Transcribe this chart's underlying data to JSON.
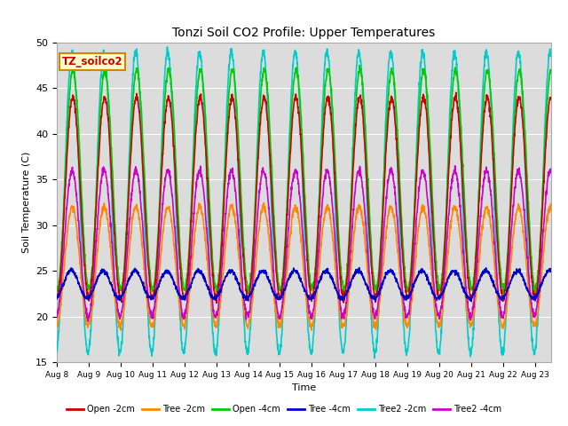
{
  "title": "Tonzi Soil CO2 Profile: Upper Temperatures",
  "xlabel": "Time",
  "ylabel": "Soil Temperature (C)",
  "ylim": [
    15,
    50
  ],
  "yticks": [
    15,
    20,
    25,
    30,
    35,
    40,
    45,
    50
  ],
  "xtick_labels": [
    "Aug 8",
    "Aug 9",
    "Aug 10",
    "Aug 11",
    "Aug 12",
    "Aug 13",
    "Aug 14",
    "Aug 15",
    "Aug 16",
    "Aug 17",
    "Aug 18",
    "Aug 19",
    "Aug 20",
    "Aug 21",
    "Aug 22",
    "Aug 23"
  ],
  "series": [
    {
      "name": "Open -2cm",
      "color": "#cc0000",
      "lw": 1.2,
      "zorder": 6
    },
    {
      "name": "Tree -2cm",
      "color": "#ff8800",
      "lw": 1.2,
      "zorder": 5
    },
    {
      "name": "Open -4cm",
      "color": "#00cc00",
      "lw": 1.2,
      "zorder": 4
    },
    {
      "name": "Tree -4cm",
      "color": "#0000cc",
      "lw": 1.2,
      "zorder": 7
    },
    {
      "name": "Tree2 -2cm",
      "color": "#00cccc",
      "lw": 1.2,
      "zorder": 3
    },
    {
      "name": "Tree2 -4cm",
      "color": "#cc00cc",
      "lw": 1.2,
      "zorder": 5
    }
  ],
  "annotation_box_color": "#ffffcc",
  "annotation_box_edge": "#cc8800",
  "annotation_text": "TZ_soilco2",
  "annotation_text_color": "#cc0000",
  "bg_color": "#dcdcdc",
  "n_points": 2000,
  "open2_amp": 11.0,
  "open2_base": 33.0,
  "open2_min": 22.0,
  "open2_max": 44.0,
  "tree2_amp": 6.5,
  "tree2_base": 25.5,
  "tree2_min": 19.0,
  "tree2_max": 32.0,
  "open4_amp": 12.0,
  "open4_base": 35.0,
  "open4_min": 23.0,
  "open4_max": 47.0,
  "tree4_amp": 1.5,
  "tree4_base": 23.0,
  "tree4_min": 21.5,
  "tree4_max": 25.0,
  "t2_2_amp": 16.5,
  "t2_2_base": 33.0,
  "t2_2_min": 16.0,
  "t2_2_max": 49.0,
  "t2_4_amp": 7.5,
  "t2_4_base": 28.0,
  "t2_4_min": 20.0,
  "t2_4_max": 36.0
}
